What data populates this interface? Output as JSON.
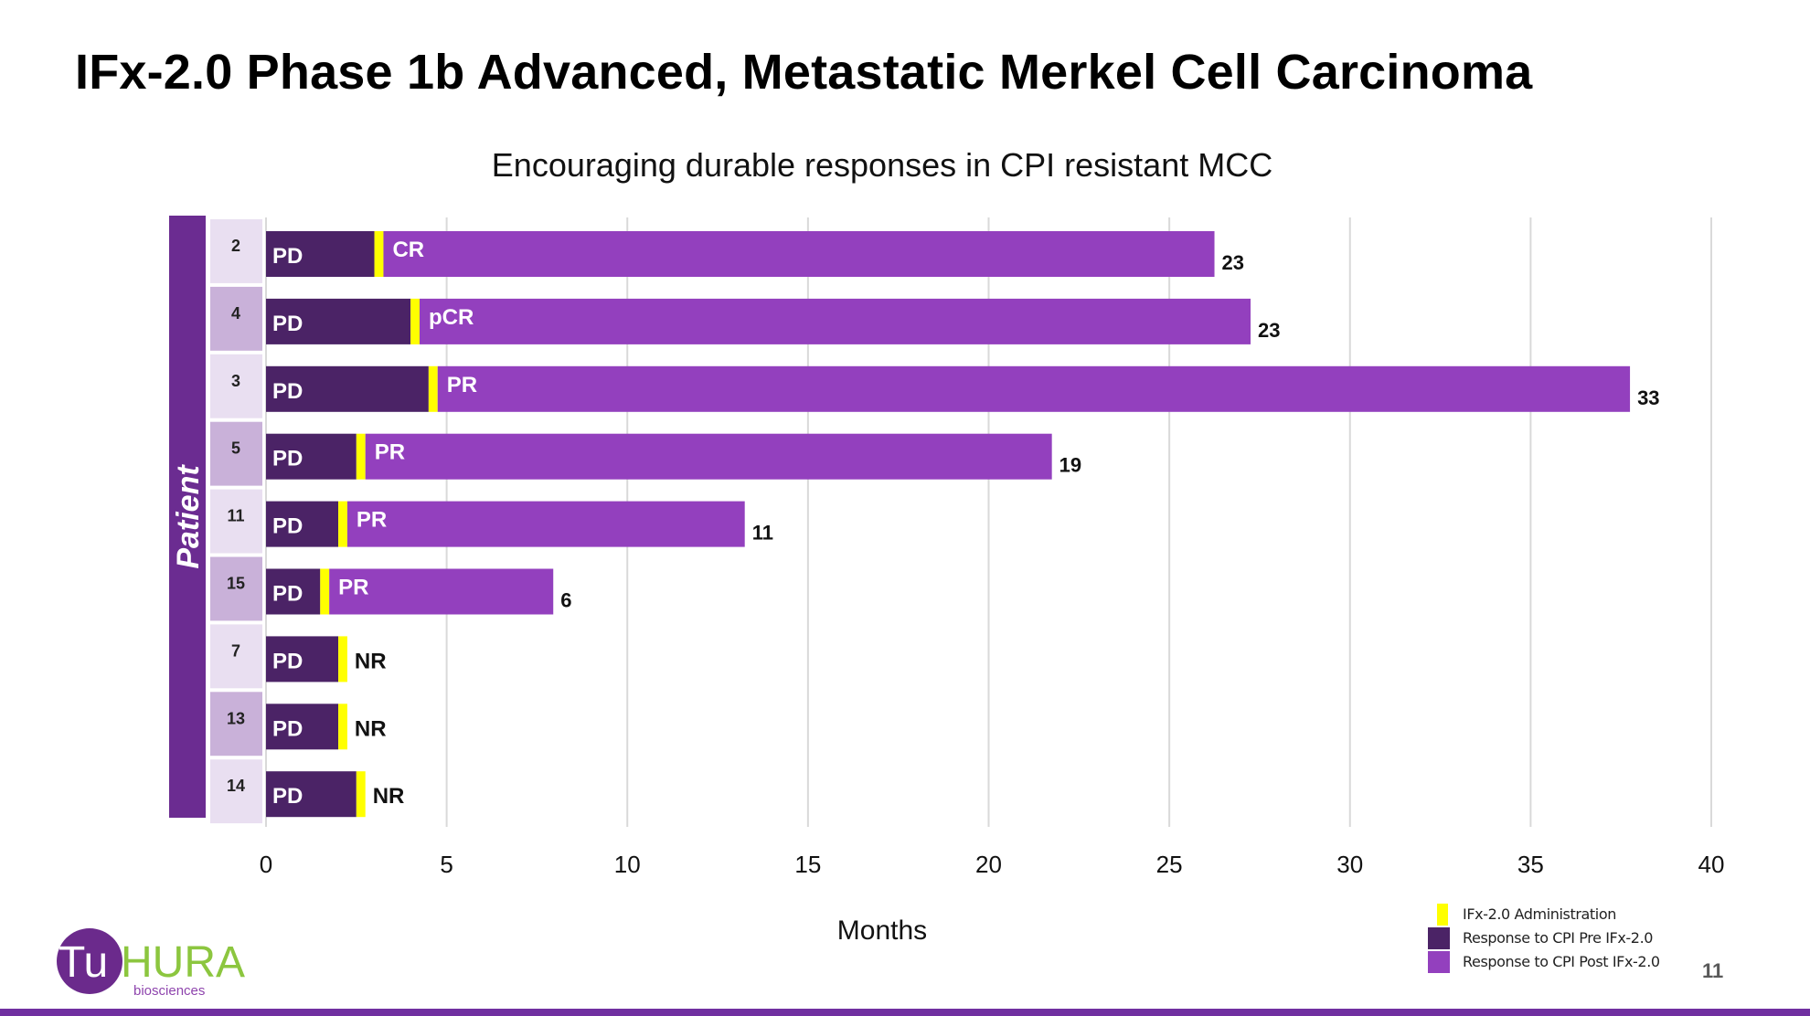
{
  "slide": {
    "title": "IFx-2.0 Phase 1b Advanced, Metastatic Merkel Cell Carcinoma",
    "subtitle": "Encouraging durable responses in CPI resistant MCC",
    "slide_number": "11"
  },
  "logo": {
    "brand_tu": "Tu",
    "brand_hura": "HURA",
    "sub": "biosciences",
    "colors": {
      "circle": "#6b2a8c",
      "hura": "#8cc63f",
      "sub": "#8e44ad"
    }
  },
  "colors": {
    "pre": "#4b2366",
    "post": "#9340be",
    "admin": "#ffff00",
    "patient_band": "#6b2c91",
    "label_dark": "#e9dff1",
    "label_light": "#c9b1d9",
    "grid": "#d9d9d9",
    "footer_line": "#7030a0"
  },
  "legend": [
    {
      "label": "IFx-2.0 Administration",
      "color": "#ffff00"
    },
    {
      "label": "Response to CPI Pre IFx-2.0",
      "color": "#4b2366"
    },
    {
      "label": "Response to CPI Post IFx-2.0",
      "color": "#9340be"
    }
  ],
  "chart_data": {
    "type": "bar",
    "orientation": "horizontal",
    "stacked": true,
    "xlabel": "Months",
    "ylabel": "Patient",
    "xlim": [
      0,
      40
    ],
    "xticks": [
      0,
      5,
      10,
      15,
      20,
      25,
      30,
      35,
      40
    ],
    "grid": true,
    "legend_position": "bottom-right",
    "categories": [
      "2",
      "4",
      "3",
      "5",
      "11",
      "15",
      "7",
      "13",
      "14"
    ],
    "series": [
      {
        "name": "Response to CPI Pre IFx-2.0",
        "values": [
          3.0,
          4.0,
          4.5,
          2.5,
          2.0,
          1.5,
          2.0,
          2.0,
          2.5
        ]
      },
      {
        "name": "IFx-2.0 Administration",
        "values": [
          0.25,
          0.25,
          0.25,
          0.25,
          0.25,
          0.25,
          0.25,
          0.25,
          0.25
        ]
      },
      {
        "name": "Response to CPI Post IFx-2.0",
        "values": [
          23.0,
          23.0,
          33.0,
          19.0,
          11.0,
          6.2,
          0,
          0,
          0
        ]
      }
    ],
    "pre_labels": [
      "PD",
      "PD",
      "PD",
      "PD",
      "PD",
      "PD",
      "PD",
      "PD",
      "PD"
    ],
    "post_labels": [
      "CR",
      "pCR",
      "PR",
      "PR",
      "PR",
      "PR",
      "NR",
      "NR",
      "NR"
    ],
    "end_labels": [
      "23",
      "23",
      "33",
      "19",
      "11",
      "6",
      "",
      "",
      ""
    ]
  }
}
